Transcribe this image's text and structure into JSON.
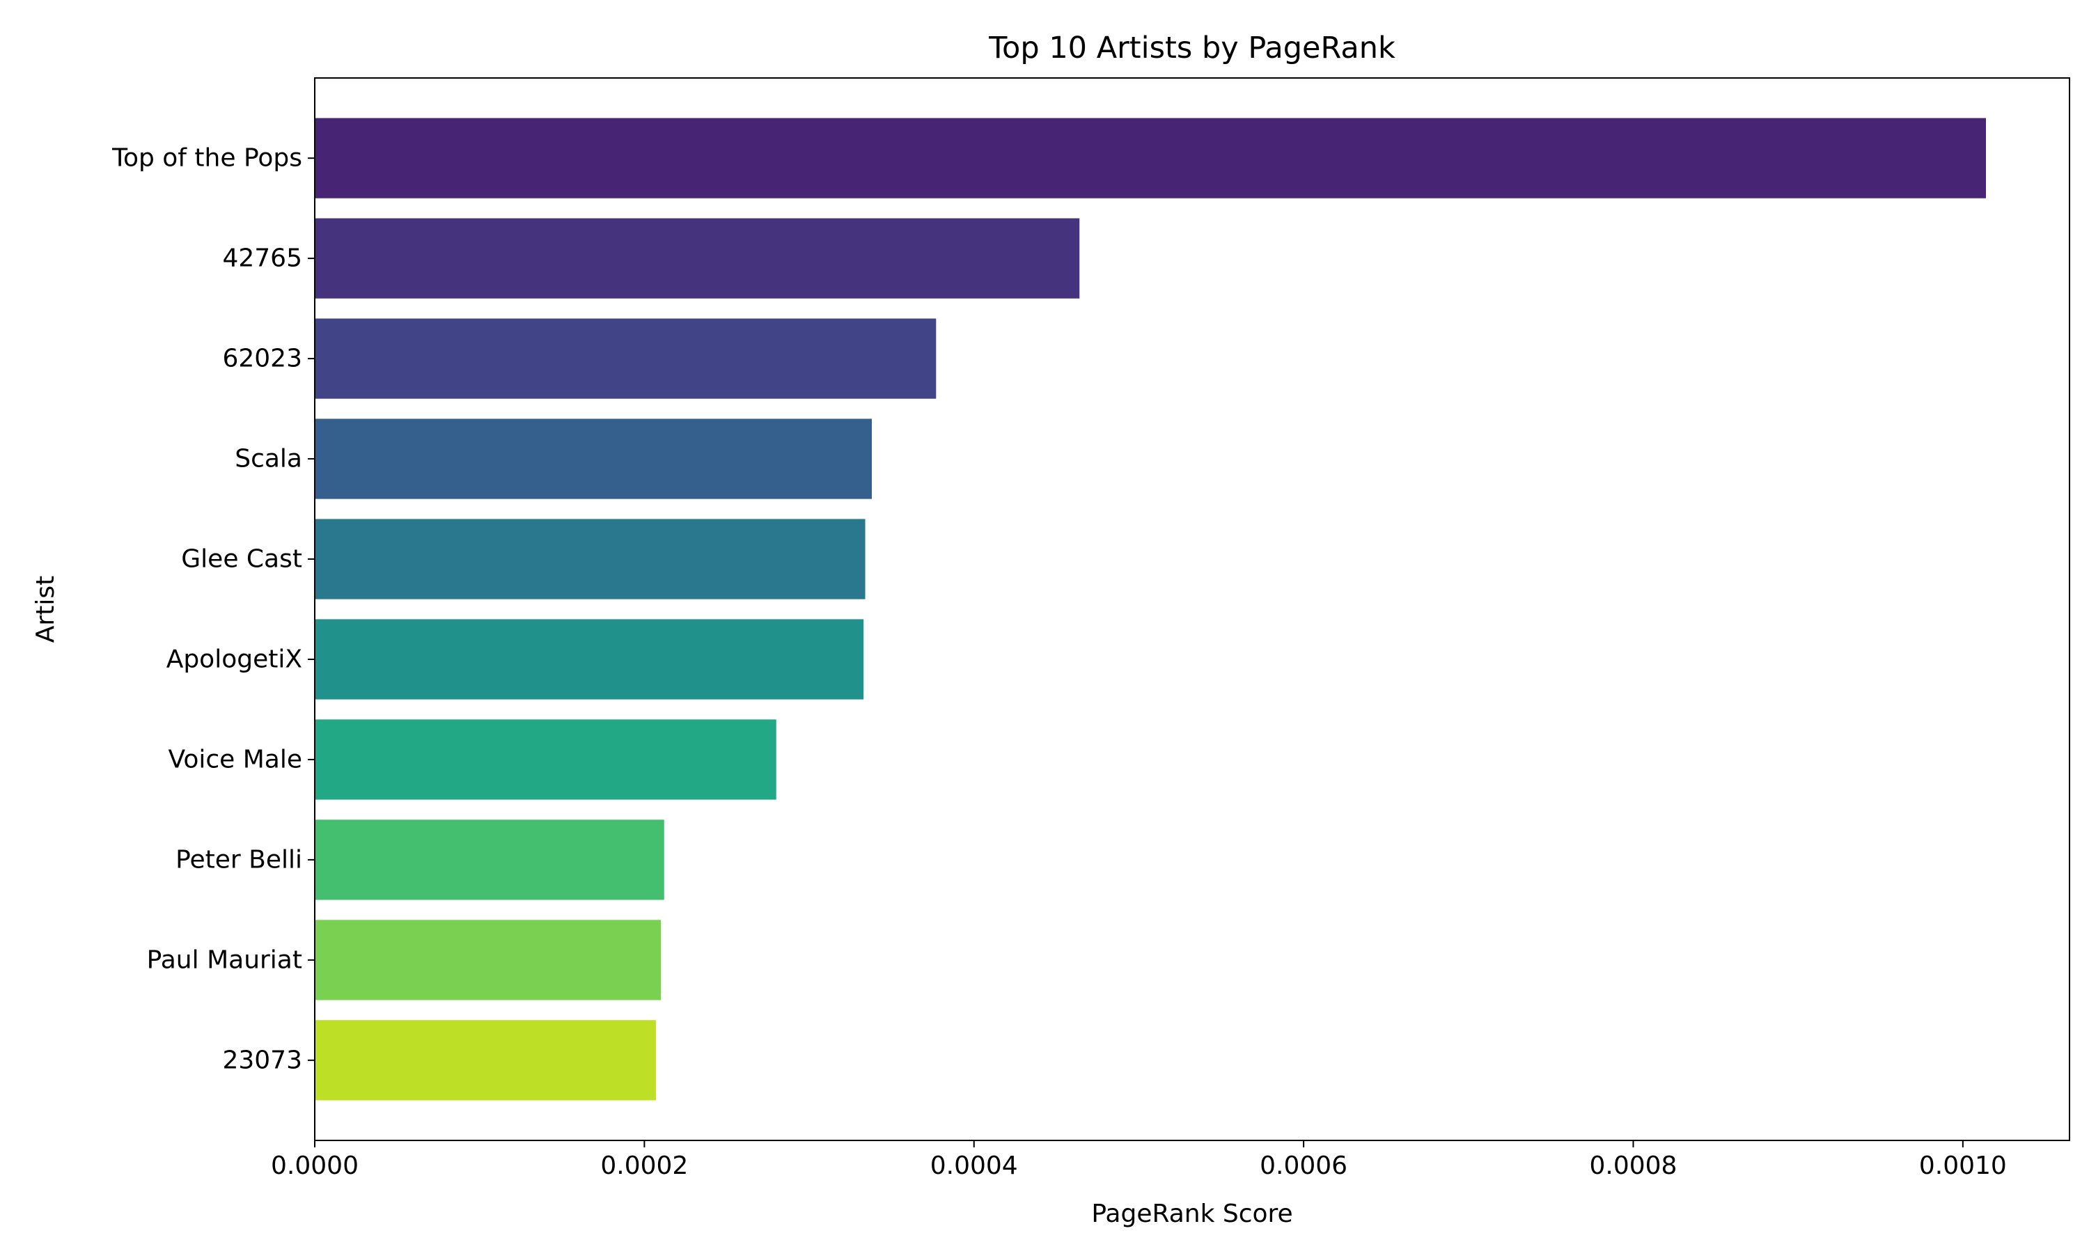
{
  "chart_data": {
    "type": "bar",
    "orientation": "horizontal",
    "title": "Top 10 Artists by PageRank",
    "xlabel": "PageRank Score",
    "ylabel": "Artist",
    "categories": [
      "Top of the Pops",
      "42765",
      "62023",
      "Scala",
      "Glee Cast",
      "ApologetiX",
      "Voice Male",
      "Peter Belli",
      "Paul Mauriat",
      "23073"
    ],
    "values": [
      0.001014,
      0.000464,
      0.000377,
      0.000338,
      0.000334,
      0.000333,
      0.00028,
      0.000212,
      0.00021,
      0.000207
    ],
    "colors": [
      "#482475",
      "#46337e",
      "#414487",
      "#355f8d",
      "#2a788e",
      "#21918c",
      "#22a884",
      "#44bf70",
      "#7ad151",
      "#bddf26"
    ],
    "xlim": [
      0,
      0.0010647
    ],
    "xticks": [
      0,
      0.0002,
      0.0004,
      0.0006,
      0.0008,
      0.001
    ],
    "xtick_labels": [
      "0.0000",
      "0.0002",
      "0.0004",
      "0.0006",
      "0.0008",
      "0.0010"
    ],
    "grid": false,
    "legend": "none"
  }
}
